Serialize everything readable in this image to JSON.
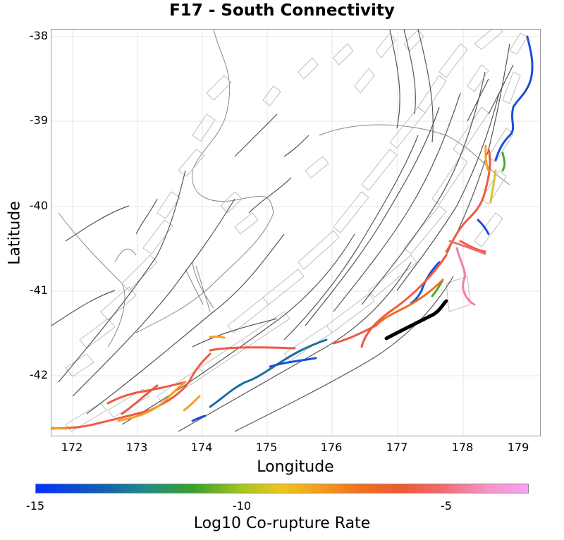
{
  "title": "F17 - South Connectivity",
  "axes": {
    "xlabel": "Longitude",
    "ylabel": "Latitude",
    "xticks": [
      "172",
      "173",
      "174",
      "175",
      "176",
      "177",
      "178",
      "179"
    ],
    "yticks": [
      "-38",
      "-39",
      "-40",
      "-41",
      "-42"
    ]
  },
  "colorbar": {
    "title": "Log10 Co-rupture Rate",
    "ticks": [
      "-15",
      "-10",
      "-5"
    ],
    "range": [
      -15,
      -3.5
    ]
  },
  "colors": {
    "background_faults": "#555555",
    "fault_planes": "#bbbbbb",
    "coastline": "#777777",
    "selected_fault": "#000000",
    "blue": "#1a4fd6",
    "teal": "#1b6fa0",
    "green": "#4aa82a",
    "yellow": "#d8c52a",
    "orange": "#f5a020",
    "red": "#ee5a44",
    "pink": "#f07cb0"
  }
}
